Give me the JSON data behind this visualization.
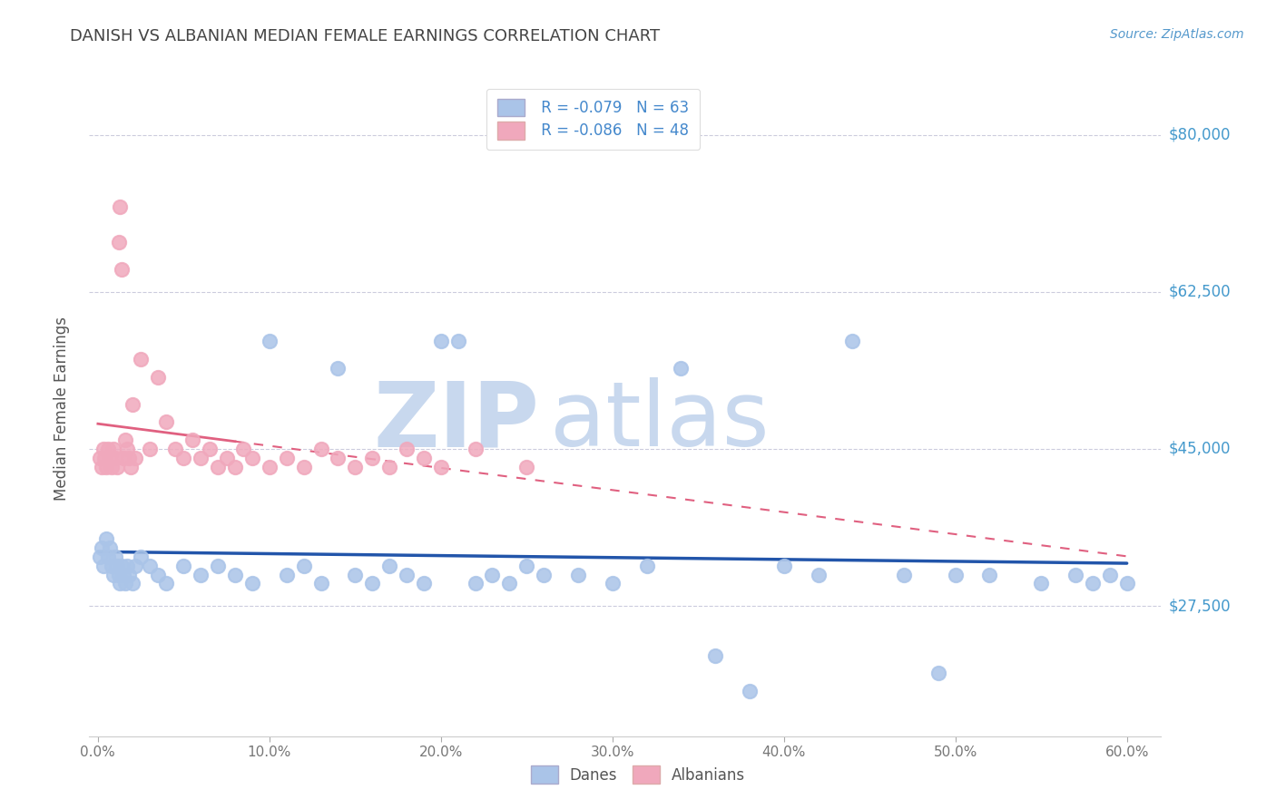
{
  "title": "DANISH VS ALBANIAN MEDIAN FEMALE EARNINGS CORRELATION CHART",
  "source": "Source: ZipAtlas.com",
  "ylabel_labels": [
    "$27,500",
    "$45,000",
    "$62,500",
    "$80,000"
  ],
  "ylabel_vals": [
    27500,
    45000,
    62500,
    80000
  ],
  "xlim": [
    0,
    60
  ],
  "ylim": [
    13000,
    86000
  ],
  "danes_color": "#aac4e8",
  "albanians_color": "#f0a8bc",
  "danes_line_color": "#2255aa",
  "albanians_line_color": "#e06080",
  "legend_line1": "R = -0.079   N = 63",
  "legend_line2": "R = -0.086   N = 48",
  "danes_label": "Danes",
  "albanians_label": "Albanians",
  "title_color": "#444444",
  "axis_label_color": "#4488cc",
  "watermark_color": "#c8d8ee",
  "danes_x": [
    0.1,
    0.2,
    0.3,
    0.5,
    0.6,
    0.7,
    0.8,
    0.9,
    1.0,
    1.1,
    1.2,
    1.3,
    1.4,
    1.5,
    1.6,
    1.7,
    1.8,
    2.0,
    2.2,
    2.5,
    3.0,
    3.5,
    4.0,
    5.0,
    6.0,
    7.0,
    8.0,
    9.0,
    10.0,
    11.0,
    12.0,
    13.0,
    14.0,
    15.0,
    16.0,
    17.0,
    18.0,
    19.0,
    20.0,
    21.0,
    22.0,
    23.0,
    24.0,
    25.0,
    26.0,
    28.0,
    30.0,
    32.0,
    34.0,
    36.0,
    38.0,
    40.0,
    42.0,
    44.0,
    47.0,
    49.0,
    50.0,
    52.0,
    55.0,
    57.0,
    58.0,
    59.0,
    60.0
  ],
  "danes_y": [
    33000,
    34000,
    32000,
    35000,
    33000,
    34000,
    32000,
    31000,
    33000,
    32000,
    31000,
    30000,
    32000,
    31000,
    30000,
    32000,
    31000,
    30000,
    32000,
    33000,
    32000,
    31000,
    30000,
    32000,
    31000,
    32000,
    31000,
    30000,
    57000,
    31000,
    32000,
    30000,
    54000,
    31000,
    30000,
    32000,
    31000,
    30000,
    57000,
    57000,
    30000,
    31000,
    30000,
    32000,
    31000,
    31000,
    30000,
    32000,
    54000,
    22000,
    18000,
    32000,
    31000,
    57000,
    31000,
    20000,
    31000,
    31000,
    30000,
    31000,
    30000,
    31000,
    30000
  ],
  "albanians_x": [
    0.1,
    0.2,
    0.3,
    0.4,
    0.5,
    0.6,
    0.7,
    0.8,
    0.9,
    1.0,
    1.1,
    1.2,
    1.3,
    1.4,
    1.5,
    1.6,
    1.7,
    1.8,
    1.9,
    2.0,
    2.2,
    2.5,
    3.0,
    3.5,
    4.0,
    4.5,
    5.0,
    5.5,
    6.0,
    6.5,
    7.0,
    7.5,
    8.0,
    8.5,
    9.0,
    10.0,
    11.0,
    12.0,
    13.0,
    14.0,
    15.0,
    16.0,
    17.0,
    18.0,
    19.0,
    20.0,
    22.0,
    25.0
  ],
  "albanians_y": [
    44000,
    43000,
    45000,
    44000,
    43000,
    45000,
    44000,
    43000,
    45000,
    44000,
    43000,
    68000,
    72000,
    65000,
    44000,
    46000,
    45000,
    44000,
    43000,
    50000,
    44000,
    55000,
    45000,
    53000,
    48000,
    45000,
    44000,
    46000,
    44000,
    45000,
    43000,
    44000,
    43000,
    45000,
    44000,
    43000,
    44000,
    43000,
    45000,
    44000,
    43000,
    44000,
    43000,
    45000,
    44000,
    43000,
    45000,
    43000
  ]
}
